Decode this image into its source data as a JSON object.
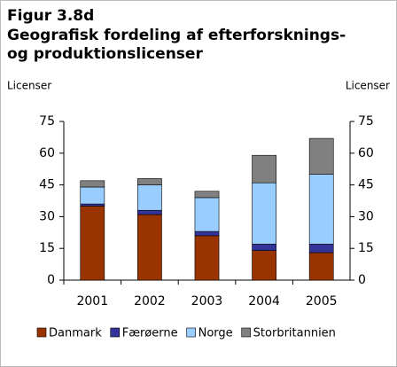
{
  "chart_data": {
    "type": "stacked_bar",
    "title": [
      "Figur 3.8d",
      "Geografisk fordeling af efterforsknings-",
      "og produktionslicenser"
    ],
    "ylabel": "Licenser",
    "y2label": "Licenser",
    "categories": [
      "2001",
      "2002",
      "2003",
      "2004",
      "2005"
    ],
    "series": [
      {
        "name": "Danmark",
        "color": "#993300",
        "values": [
          35,
          31,
          21,
          14,
          13
        ]
      },
      {
        "name": "Færøerne",
        "color": "#333399",
        "values": [
          1,
          2,
          2,
          3,
          4
        ]
      },
      {
        "name": "Norge",
        "color": "#99ccff",
        "values": [
          8,
          12,
          16,
          29,
          33
        ]
      },
      {
        "name": "Storbritannien",
        "color": "#808080",
        "values": [
          3,
          3,
          3,
          13,
          17
        ]
      }
    ],
    "ylim": [
      0,
      75
    ],
    "yticks": [
      0,
      15,
      30,
      45,
      60,
      75
    ],
    "y2lim": [
      0,
      75
    ],
    "y2ticks": [
      0,
      15,
      30,
      45,
      60,
      75
    ],
    "legend": "bottom"
  }
}
